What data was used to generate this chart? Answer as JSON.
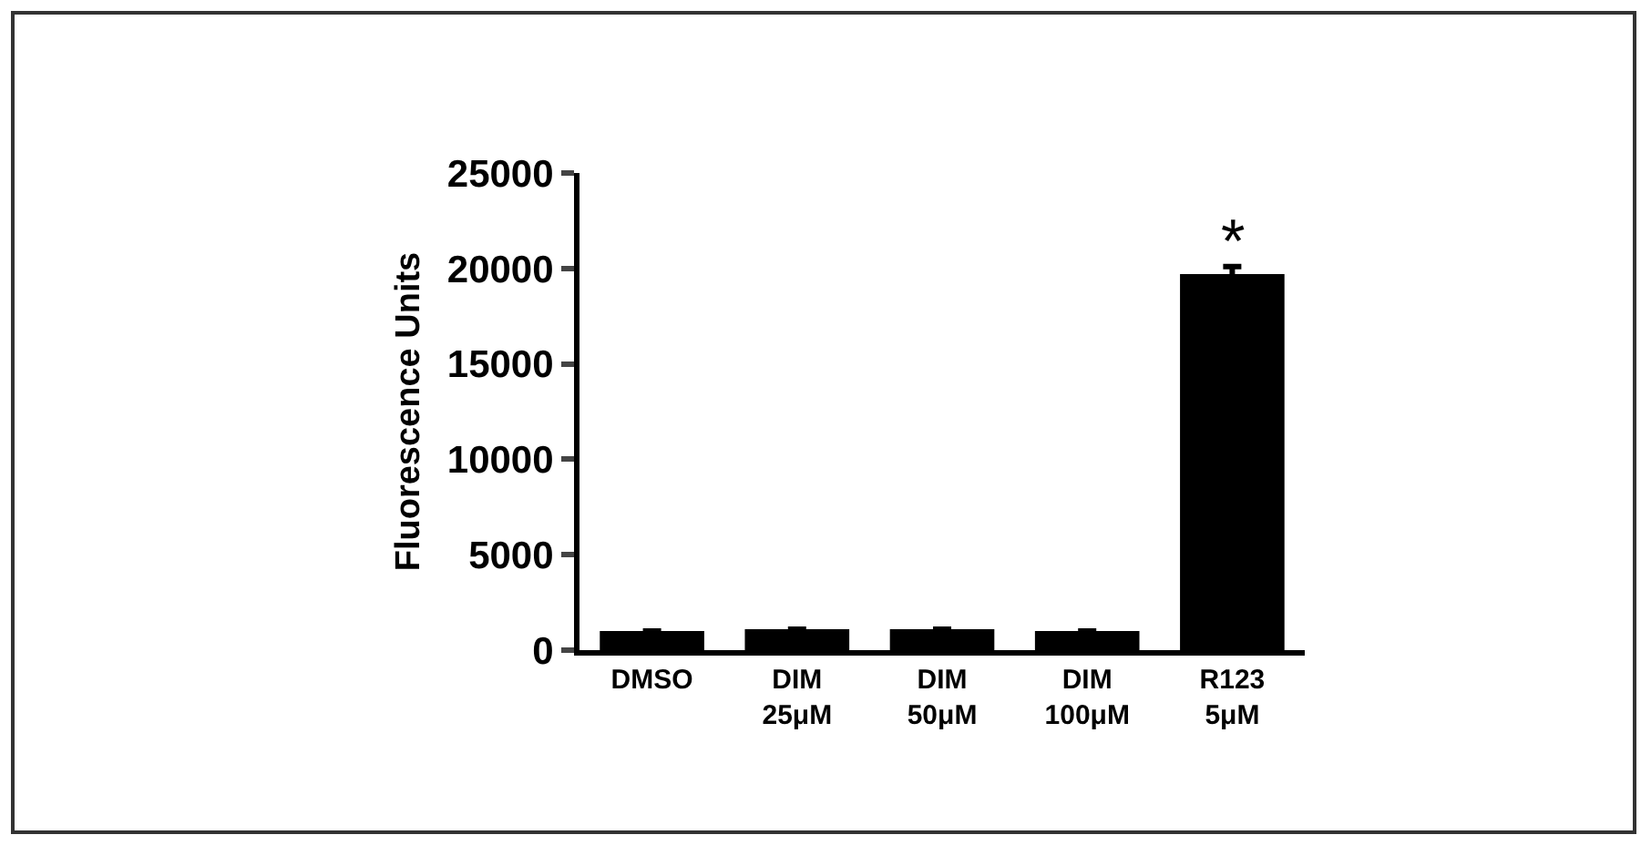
{
  "chart_data": {
    "type": "bar",
    "ylabel": "Fluorescence Units",
    "categories": [
      "DMSO",
      "DIM\n25μM",
      "DIM\n50μM",
      "DIM\n100μM",
      "R123\n5μM"
    ],
    "values": [
      1000,
      1100,
      1100,
      1000,
      19700
    ],
    "errors": [
      null,
      null,
      null,
      null,
      400
    ],
    "color": "#000000",
    "ylim": [
      0,
      25000
    ],
    "yticks": [
      0,
      5000,
      10000,
      15000,
      20000,
      25000
    ],
    "grid": false,
    "annotations": [
      {
        "text": "*",
        "x": "R123\n5μM",
        "y": 20100
      }
    ]
  }
}
